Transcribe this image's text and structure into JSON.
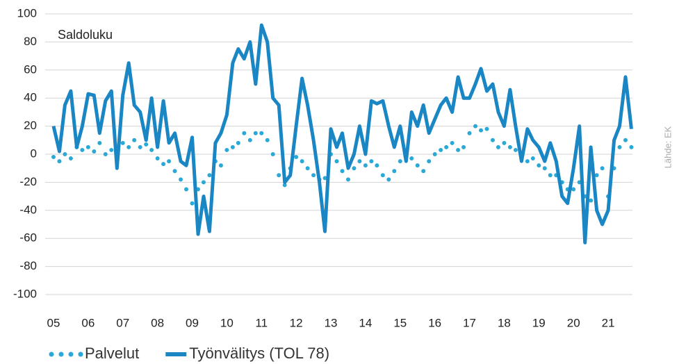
{
  "chart_data": {
    "type": "line",
    "annotation": "Saldoluku",
    "source": "Lähde: EK",
    "x": [
      5,
      5.17,
      5.33,
      5.5,
      5.67,
      5.83,
      6,
      6.17,
      6.33,
      6.5,
      6.67,
      6.83,
      7,
      7.17,
      7.33,
      7.5,
      7.67,
      7.83,
      8,
      8.17,
      8.33,
      8.5,
      8.67,
      8.83,
      9,
      9.17,
      9.33,
      9.5,
      9.67,
      9.83,
      10,
      10.17,
      10.33,
      10.5,
      10.67,
      10.83,
      11,
      11.17,
      11.33,
      11.5,
      11.67,
      11.83,
      12,
      12.17,
      12.33,
      12.5,
      12.67,
      12.83,
      13,
      13.17,
      13.33,
      13.5,
      13.67,
      13.83,
      14,
      14.17,
      14.33,
      14.5,
      14.67,
      14.83,
      15,
      15.17,
      15.33,
      15.5,
      15.67,
      15.83,
      16,
      16.17,
      16.33,
      16.5,
      16.67,
      16.83,
      17,
      17.17,
      17.33,
      17.5,
      17.67,
      17.83,
      18,
      18.17,
      18.33,
      18.5,
      18.67,
      18.83,
      19,
      19.17,
      19.33,
      19.5,
      19.67,
      19.83,
      20,
      20.17,
      20.33,
      20.5,
      20.67,
      20.83,
      21,
      21.17,
      21.33,
      21.5,
      21.67
    ],
    "series": [
      {
        "name": "Palvelut",
        "color": "#2aa8d6",
        "line_style": "dotted",
        "values": [
          -2,
          -5,
          0,
          -3,
          5,
          3,
          5,
          2,
          8,
          0,
          3,
          5,
          8,
          5,
          10,
          5,
          7,
          3,
          -3,
          -7,
          -5,
          -12,
          -18,
          -25,
          -35,
          -25,
          -20,
          -15,
          -5,
          -8,
          3,
          5,
          8,
          15,
          10,
          15,
          15,
          10,
          0,
          -15,
          -22,
          -10,
          -2,
          -5,
          -10,
          -15,
          -18,
          -17,
          0,
          -5,
          -12,
          -18,
          -10,
          -5,
          -8,
          -5,
          -8,
          -15,
          -18,
          -12,
          -5,
          0,
          -3,
          -8,
          -12,
          -5,
          0,
          3,
          5,
          8,
          3,
          5,
          15,
          20,
          17,
          18,
          10,
          5,
          8,
          5,
          3,
          0,
          -5,
          -3,
          -8,
          -10,
          -15,
          -15,
          -20,
          -25,
          -25,
          -20,
          -30,
          -33,
          -15,
          -10,
          -30,
          -10,
          5,
          10,
          5
        ]
      },
      {
        "name": "Työnvälitys (TOL 78)",
        "color": "#1a86c4",
        "line_style": "solid",
        "values": [
          20,
          2,
          35,
          45,
          5,
          20,
          43,
          42,
          15,
          38,
          45,
          -10,
          42,
          65,
          35,
          30,
          10,
          40,
          5,
          38,
          8,
          15,
          -5,
          -8,
          12,
          -57,
          -30,
          -55,
          8,
          15,
          28,
          65,
          75,
          68,
          80,
          50,
          92,
          80,
          40,
          35,
          -20,
          -15,
          20,
          54,
          35,
          10,
          -20,
          -55,
          18,
          5,
          15,
          -10,
          0,
          20,
          0,
          38,
          36,
          38,
          20,
          5,
          20,
          -5,
          30,
          20,
          35,
          15,
          25,
          35,
          40,
          30,
          55,
          40,
          40,
          50,
          61,
          45,
          50,
          30,
          20,
          46,
          20,
          -5,
          18,
          10,
          5,
          -5,
          8,
          -5,
          -30,
          -35,
          -10,
          20,
          -63,
          5,
          -40,
          -50,
          -40,
          10,
          20,
          55,
          18
        ]
      }
    ],
    "xlim": [
      4.76,
      21.7
    ],
    "xticks": [
      {
        "value": 5,
        "label": "05"
      },
      {
        "value": 6,
        "label": "06"
      },
      {
        "value": 7,
        "label": "07"
      },
      {
        "value": 8,
        "label": "08"
      },
      {
        "value": 9,
        "label": "09"
      },
      10,
      11,
      12,
      13,
      14,
      15,
      16,
      17,
      18,
      19,
      20,
      21
    ],
    "ylim": [
      -100,
      100
    ],
    "yticks": [
      -100,
      -80,
      -60,
      -40,
      -20,
      0,
      20,
      40,
      60,
      80,
      100
    ],
    "grid": true
  }
}
